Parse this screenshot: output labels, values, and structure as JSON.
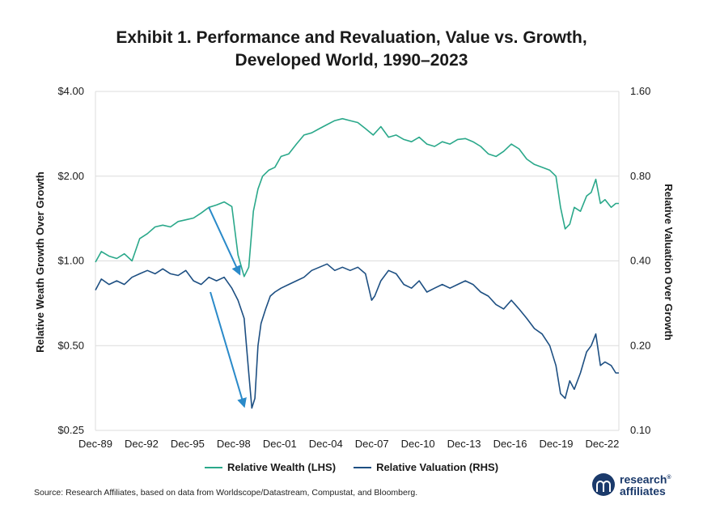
{
  "title_line1": "Exhibit 1. Performance and Revaluation, Value vs. Growth,",
  "title_line2": "Developed World, 1990–2023",
  "source": "Source: Research Affiliates, based on data from Worldscope/Datastream, Compustat, and Bloomberg.",
  "logo": {
    "line1": "research",
    "line2": "affiliates",
    "mark": "®"
  },
  "colors": {
    "wealth": "#2aa88a",
    "valuation": "#1d4f82",
    "arrow": "#2a8ac9",
    "grid": "#dcdcdc"
  },
  "chart_data": {
    "type": "line",
    "title": "Exhibit 1. Performance and Revaluation, Value vs. Growth, Developed World, 1990–2023",
    "ylabel_left": "Relative Weath Growth Over Growth",
    "ylabel_right": "Relative Valuation Over Growth",
    "y_left_scale": "log",
    "y_left_range": [
      0.25,
      4.0
    ],
    "y_left_ticks": [
      "$0.25",
      "$0.50",
      "$1.00",
      "$2.00",
      "$4.00"
    ],
    "y_left_tick_values": [
      0.25,
      0.5,
      1.0,
      2.0,
      4.0
    ],
    "y_right_scale": "log",
    "y_right_range": [
      0.1,
      1.6
    ],
    "y_right_ticks": [
      "0.10",
      "0.20",
      "0.40",
      "0.80",
      "1.60"
    ],
    "y_right_tick_values": [
      0.1,
      0.2,
      0.4,
      0.8,
      1.6
    ],
    "x_range": [
      1989.917,
      2024.0
    ],
    "x_ticks": [
      "Dec-89",
      "Dec-92",
      "Dec-95",
      "Dec-98",
      "Dec-01",
      "Dec-04",
      "Dec-07",
      "Dec-10",
      "Dec-13",
      "Dec-16",
      "Dec-19",
      "Dec-22"
    ],
    "x_tick_values": [
      1989.917,
      1992.917,
      1995.917,
      1998.917,
      2001.917,
      2004.917,
      2007.917,
      2010.917,
      2013.917,
      2016.917,
      2019.917,
      2022.917
    ],
    "grid": "horizontal",
    "legend_position": "bottom",
    "series": [
      {
        "name": "Relative Wealth (LHS)",
        "axis": "left",
        "x": [
          1989.917,
          1990.3,
          1990.8,
          1991.3,
          1991.8,
          1992.3,
          1992.8,
          1993.3,
          1993.8,
          1994.3,
          1994.8,
          1995.3,
          1995.8,
          1996.3,
          1996.8,
          1997.3,
          1997.8,
          1998.3,
          1998.8,
          1999.2,
          1999.6,
          1999.9,
          2000.2,
          2000.5,
          2000.8,
          2001.2,
          2001.6,
          2002.0,
          2002.5,
          2003.0,
          2003.5,
          2004.0,
          2004.5,
          2005.0,
          2005.5,
          2006.0,
          2006.5,
          2007.0,
          2007.5,
          2008.0,
          2008.5,
          2009.0,
          2009.5,
          2010.0,
          2010.5,
          2011.0,
          2011.5,
          2012.0,
          2012.5,
          2013.0,
          2013.5,
          2014.0,
          2014.5,
          2015.0,
          2015.5,
          2016.0,
          2016.5,
          2017.0,
          2017.5,
          2018.0,
          2018.5,
          2019.0,
          2019.5,
          2019.9,
          2020.2,
          2020.5,
          2020.8,
          2021.1,
          2021.5,
          2021.9,
          2022.2,
          2022.5,
          2022.8,
          2023.1,
          2023.5,
          2023.8,
          2024.0
        ],
        "y": [
          0.99,
          1.08,
          1.04,
          1.02,
          1.06,
          1.0,
          1.2,
          1.25,
          1.32,
          1.34,
          1.32,
          1.38,
          1.4,
          1.42,
          1.48,
          1.55,
          1.58,
          1.62,
          1.56,
          1.05,
          0.88,
          0.95,
          1.5,
          1.8,
          2.0,
          2.1,
          2.15,
          2.35,
          2.4,
          2.6,
          2.8,
          2.85,
          2.95,
          3.05,
          3.15,
          3.2,
          3.15,
          3.1,
          2.95,
          2.8,
          3.0,
          2.75,
          2.8,
          2.7,
          2.65,
          2.75,
          2.6,
          2.55,
          2.65,
          2.6,
          2.7,
          2.72,
          2.65,
          2.55,
          2.4,
          2.35,
          2.45,
          2.6,
          2.5,
          2.3,
          2.2,
          2.15,
          2.1,
          2.0,
          1.55,
          1.3,
          1.35,
          1.55,
          1.5,
          1.7,
          1.75,
          1.95,
          1.6,
          1.65,
          1.55,
          1.6,
          1.6
        ]
      },
      {
        "name": "Relative Valuation (RHS)",
        "axis": "right",
        "x": [
          1989.917,
          1990.3,
          1990.8,
          1991.3,
          1991.8,
          1992.3,
          1992.8,
          1993.3,
          1993.8,
          1994.3,
          1994.8,
          1995.3,
          1995.8,
          1996.3,
          1996.8,
          1997.3,
          1997.8,
          1998.3,
          1998.8,
          1999.2,
          1999.6,
          1999.9,
          2000.1,
          2000.3,
          2000.5,
          2000.7,
          2001.0,
          2001.3,
          2001.6,
          2002.0,
          2002.5,
          2003.0,
          2003.5,
          2004.0,
          2004.5,
          2005.0,
          2005.5,
          2006.0,
          2006.5,
          2007.0,
          2007.5,
          2007.9,
          2008.1,
          2008.5,
          2009.0,
          2009.5,
          2010.0,
          2010.5,
          2011.0,
          2011.5,
          2012.0,
          2012.5,
          2013.0,
          2013.5,
          2014.0,
          2014.5,
          2015.0,
          2015.5,
          2016.0,
          2016.5,
          2017.0,
          2017.5,
          2018.0,
          2018.5,
          2019.0,
          2019.5,
          2019.9,
          2020.2,
          2020.5,
          2020.8,
          2021.1,
          2021.5,
          2021.9,
          2022.2,
          2022.5,
          2022.8,
          2023.1,
          2023.5,
          2023.8,
          2024.0
        ],
        "y": [
          0.315,
          0.345,
          0.33,
          0.34,
          0.33,
          0.35,
          0.36,
          0.37,
          0.36,
          0.375,
          0.36,
          0.355,
          0.37,
          0.34,
          0.33,
          0.35,
          0.34,
          0.35,
          0.32,
          0.29,
          0.25,
          0.16,
          0.12,
          0.13,
          0.2,
          0.24,
          0.27,
          0.3,
          0.31,
          0.32,
          0.33,
          0.34,
          0.35,
          0.37,
          0.38,
          0.39,
          0.37,
          0.38,
          0.37,
          0.38,
          0.36,
          0.29,
          0.3,
          0.34,
          0.37,
          0.36,
          0.33,
          0.32,
          0.34,
          0.31,
          0.32,
          0.33,
          0.32,
          0.33,
          0.34,
          0.33,
          0.31,
          0.3,
          0.28,
          0.27,
          0.29,
          0.27,
          0.25,
          0.23,
          0.22,
          0.2,
          0.17,
          0.135,
          0.13,
          0.15,
          0.14,
          0.16,
          0.19,
          0.2,
          0.22,
          0.17,
          0.175,
          0.17,
          0.16,
          0.16
        ]
      }
    ],
    "annotations": [
      {
        "type": "arrow",
        "series": "Relative Wealth (LHS)",
        "from": [
          1997.3,
          1.55
        ],
        "to": [
          1999.3,
          0.9
        ]
      },
      {
        "type": "arrow",
        "series": "Relative Valuation (RHS)",
        "from": [
          1997.4,
          0.31
        ],
        "to": [
          1999.6,
          0.122
        ]
      }
    ]
  }
}
